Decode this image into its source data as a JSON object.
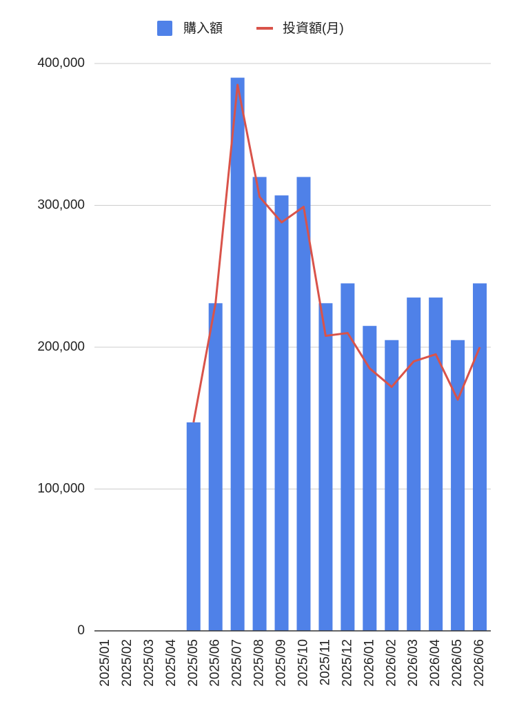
{
  "chart_data": {
    "type": "combo",
    "categories": [
      "2025/01",
      "2025/02",
      "2025/03",
      "2025/04",
      "2025/05",
      "2025/06",
      "2025/07",
      "2025/08",
      "2025/09",
      "2025/10",
      "2025/11",
      "2025/12",
      "2026/01",
      "2026/02",
      "2026/03",
      "2026/04",
      "2026/05",
      "2026/06"
    ],
    "series": [
      {
        "name": "購入額",
        "type": "bar",
        "color": "#4f81e8",
        "values": [
          0,
          0,
          0,
          0,
          147000,
          231000,
          390000,
          320000,
          307000,
          320000,
          231000,
          245000,
          215000,
          205000,
          235000,
          235000,
          205000,
          245000
        ]
      },
      {
        "name": "投資額(月)",
        "type": "line",
        "color": "#d9534a",
        "values": [
          null,
          null,
          null,
          null,
          147000,
          231000,
          385000,
          306000,
          288000,
          299000,
          208000,
          210000,
          185000,
          172000,
          190000,
          195000,
          163000,
          200000
        ]
      }
    ],
    "ylim": [
      0,
      400000
    ],
    "yticks": [
      0,
      {
        "value": 100000,
        "label": "100,000"
      },
      {
        "value": 200000,
        "label": "200,000"
      },
      {
        "value": 300000,
        "label": "300,000"
      },
      {
        "value": 400000,
        "label": "400,000"
      }
    ],
    "grid": true,
    "legend": "top"
  }
}
